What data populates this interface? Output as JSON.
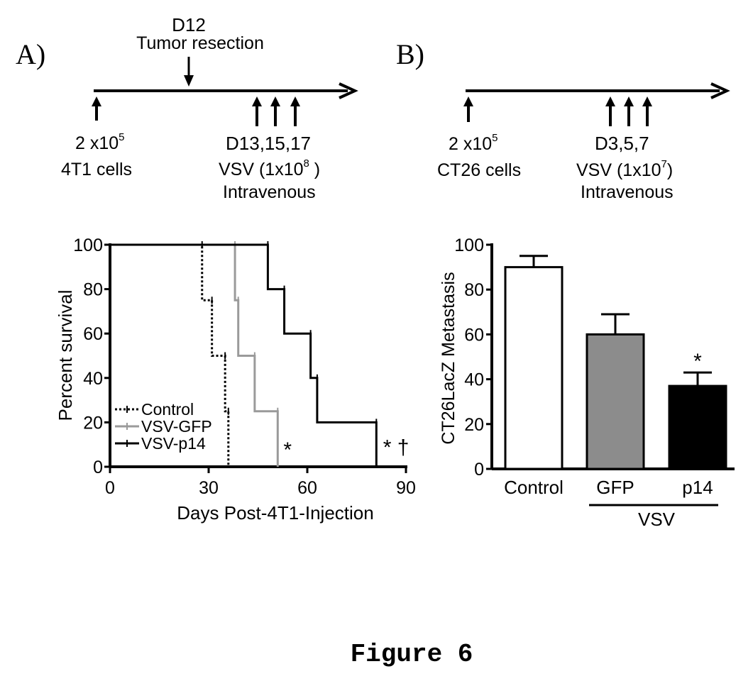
{
  "figure_caption": "Figure 6",
  "panel_a": {
    "label": "A)",
    "timeline": {
      "top_day": "D12",
      "top_event": "Tumor resection",
      "start_cells_prefix": "2 x10",
      "start_cells_exp": "5",
      "start_cells_line2": "4T1 cells",
      "treatment_days": "D13,15,17",
      "treatment_dose_prefix": "VSV (1x10",
      "treatment_dose_exp": "8",
      "treatment_dose_suffix": " )",
      "route": "Intravenous"
    }
  },
  "panel_b": {
    "label": "B)",
    "timeline": {
      "start_cells_prefix": "2 x10",
      "start_cells_exp": "5",
      "start_cells_line2": "CT26 cells",
      "treatment_days": "D3,5,7",
      "treatment_dose_prefix": "VSV (1x10",
      "treatment_dose_exp": "7",
      "treatment_dose_suffix": ")",
      "route": "Intravenous"
    }
  },
  "chart_data": [
    {
      "type": "line",
      "subtype": "kaplan-meier",
      "xlabel": "Days Post-4T1-Injection",
      "ylabel": "Percent survival",
      "xlim": [
        0,
        90
      ],
      "ylim": [
        0,
        100
      ],
      "xticks": [
        0,
        30,
        60,
        90
      ],
      "yticks": [
        0,
        20,
        40,
        60,
        80,
        100
      ],
      "legend_position": "bottom-left",
      "series": [
        {
          "name": "Control",
          "color": "#000000",
          "dash": "dotted",
          "steps": [
            [
              0,
              100
            ],
            [
              28,
              100
            ],
            [
              28,
              75
            ],
            [
              31,
              75
            ],
            [
              31,
              50
            ],
            [
              35,
              50
            ],
            [
              35,
              25
            ],
            [
              36,
              25
            ],
            [
              36,
              0
            ]
          ]
        },
        {
          "name": "VSV-GFP",
          "color": "#9a9a9a",
          "dash": "solid",
          "steps": [
            [
              0,
              100
            ],
            [
              38,
              100
            ],
            [
              38,
              75
            ],
            [
              39,
              75
            ],
            [
              39,
              50
            ],
            [
              44,
              50
            ],
            [
              44,
              25
            ],
            [
              51,
              25
            ],
            [
              51,
              0
            ]
          ]
        },
        {
          "name": "VSV-p14",
          "color": "#000000",
          "dash": "solid",
          "steps": [
            [
              0,
              100
            ],
            [
              48,
              100
            ],
            [
              48,
              80
            ],
            [
              53,
              80
            ],
            [
              53,
              60
            ],
            [
              61,
              60
            ],
            [
              61,
              40
            ],
            [
              63,
              40
            ],
            [
              63,
              20
            ],
            [
              81,
              20
            ],
            [
              81,
              0
            ]
          ]
        }
      ],
      "annotations": [
        {
          "text": "*",
          "x": 54,
          "y": 9
        },
        {
          "text": "* †",
          "x": 87,
          "y": 10
        }
      ]
    },
    {
      "type": "bar",
      "ylabel": "CT26LacZ Metastasis",
      "ylim": [
        0,
        100
      ],
      "yticks": [
        0,
        20,
        40,
        60,
        80,
        100
      ],
      "categories": [
        "Control",
        "GFP",
        "p14"
      ],
      "values": [
        90,
        60,
        37
      ],
      "errors": [
        5,
        9,
        6
      ],
      "bar_fills": [
        "#ffffff",
        "#8c8c8c",
        "#000000"
      ],
      "group_label": "VSV",
      "group_members": [
        "GFP",
        "p14"
      ],
      "significance": [
        {
          "category": "p14",
          "text": "*"
        }
      ]
    }
  ]
}
